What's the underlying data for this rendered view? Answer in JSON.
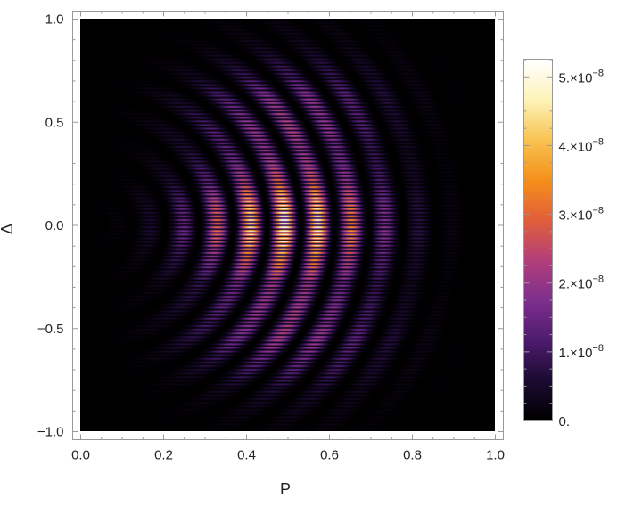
{
  "chart_data": {
    "type": "heatmap",
    "title": "",
    "xlabel": "P",
    "ylabel": "Δ",
    "xlim": [
      0.0,
      1.0
    ],
    "ylim": [
      -1.0,
      1.0
    ],
    "x_ticks": [
      {
        "value": 0.0,
        "label": "0.0"
      },
      {
        "value": 0.2,
        "label": "0.2"
      },
      {
        "value": 0.4,
        "label": "0.4"
      },
      {
        "value": 0.6,
        "label": "0.6"
      },
      {
        "value": 0.8,
        "label": "0.8"
      },
      {
        "value": 1.0,
        "label": "1.0"
      }
    ],
    "y_ticks": [
      {
        "value": 1.0,
        "label": "1.0"
      },
      {
        "value": 0.5,
        "label": "0.5"
      },
      {
        "value": 0.0,
        "label": "0.0"
      },
      {
        "value": -0.5,
        "label": "−0.5"
      },
      {
        "value": -1.0,
        "label": "−1.0"
      }
    ],
    "colorbar": {
      "range": [
        0,
        5.25e-08
      ],
      "ticks": [
        {
          "value": 0,
          "mantissa": "0."
        },
        {
          "value": 1e-08,
          "mantissa": "1.×10",
          "exponent": "−8"
        },
        {
          "value": 2e-08,
          "mantissa": "2.×10",
          "exponent": "−8"
        },
        {
          "value": 3e-08,
          "mantissa": "3.×10",
          "exponent": "−8"
        },
        {
          "value": 4e-08,
          "mantissa": "4.×10",
          "exponent": "−8"
        },
        {
          "value": 5e-08,
          "mantissa": "5.×10",
          "exponent": "−8"
        }
      ],
      "colormap": [
        "#000000",
        "#1c0b33",
        "#4e1b6e",
        "#7e2f8e",
        "#b33f7a",
        "#e25f3a",
        "#f5901a",
        "#f8c352",
        "#fdf3b8",
        "#ffffff"
      ]
    },
    "grid": false,
    "legend": "right"
  }
}
